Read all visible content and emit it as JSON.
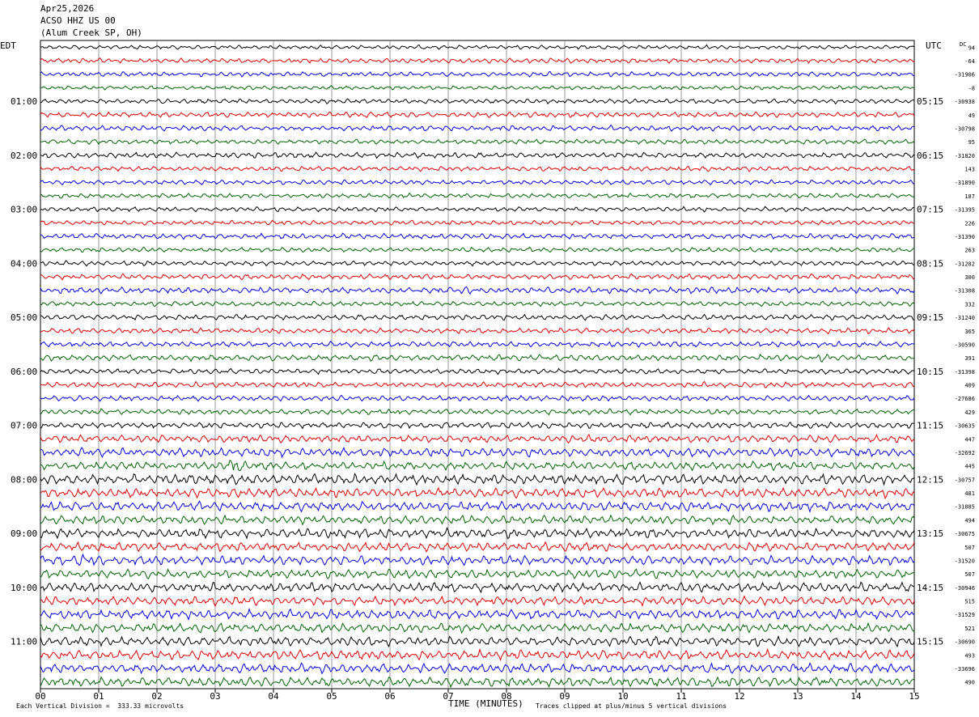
{
  "header": {
    "date": "Apr25,2026",
    "station": "ACSO HHZ US 00",
    "location": "(Alum Creek SP, OH)"
  },
  "labels": {
    "left_tz": "EDT",
    "right_tz": "UTC",
    "dc": "DC"
  },
  "footer": {
    "scale": "Each Vertical Division =  333.33 microvolts",
    "clip": "Traces clipped at plus/minus 5 vertical divisions"
  },
  "colors": {
    "trace": [
      "#000000",
      "#dd0000",
      "#0000dd",
      "#006400"
    ],
    "grid": "#808080",
    "frame": "#000000"
  },
  "chart_data": {
    "type": "line",
    "subtype": "helicorder",
    "title": "Apr25,2026 ACSO HHZ US 00 (Alum Creek SP, OH)",
    "xlabel": "TIME (MINUTES)",
    "xlim": [
      0,
      15
    ],
    "xticks": [
      "00",
      "01",
      "02",
      "03",
      "04",
      "05",
      "06",
      "07",
      "08",
      "09",
      "10",
      "11",
      "12",
      "13",
      "14",
      "15"
    ],
    "rows_count": 48,
    "row_minutes": 15,
    "left_hour_labels": [
      "01:00",
      "02:00",
      "03:00",
      "04:00",
      "05:00",
      "06:00",
      "07:00",
      "08:00",
      "09:00",
      "10:00",
      "11:00"
    ],
    "right_hour_labels": [
      "05:15",
      "06:15",
      "07:15",
      "08:15",
      "09:15",
      "10:15",
      "11:15",
      "12:15",
      "13:15",
      "14:15",
      "15:15"
    ],
    "dc_offsets": [
      "94",
      "-64",
      "-31906",
      "-8",
      "-30938",
      "49",
      "-30798",
      "95",
      "-31820",
      "143",
      "-31890",
      "187",
      "-31395",
      "226",
      "-31390",
      "263",
      "-31282",
      "300",
      "-31308",
      "332",
      "-31240",
      "365",
      "-30590",
      "391",
      "-31398",
      "409",
      "-27686",
      "429",
      "-30635",
      "447",
      "-32692",
      "445",
      "-30757",
      "481",
      "-31885",
      "494",
      "-30675",
      "507",
      "-31520",
      "507",
      "-30946",
      "515",
      "-31529",
      "521",
      "-30690",
      "493",
      "-33696",
      "490"
    ],
    "row_amplitude": [
      0.3,
      0.35,
      0.35,
      0.3,
      0.35,
      0.4,
      0.4,
      0.35,
      0.4,
      0.35,
      0.35,
      0.35,
      0.35,
      0.35,
      0.4,
      0.35,
      0.35,
      0.4,
      0.45,
      0.35,
      0.4,
      0.4,
      0.4,
      0.45,
      0.4,
      0.4,
      0.4,
      0.4,
      0.45,
      0.55,
      0.65,
      0.6,
      0.75,
      0.7,
      0.7,
      0.65,
      0.7,
      0.65,
      0.7,
      0.65,
      0.7,
      0.65,
      0.7,
      0.65,
      0.7,
      0.7,
      0.7,
      0.7
    ],
    "events": [
      {
        "row": 2,
        "minute": 5.4,
        "amplitude": 1.3
      },
      {
        "row": 7,
        "minute": 1.0,
        "amplitude": 1.3
      },
      {
        "row": 8,
        "minute": 4.6,
        "amplitude": 1.2
      },
      {
        "row": 18,
        "minute": 7.1,
        "amplitude": 2.2
      },
      {
        "row": 18,
        "minute": 11.4,
        "amplitude": 1.3
      },
      {
        "row": 23,
        "minute": 13.4,
        "amplitude": 1.5
      },
      {
        "row": 31,
        "minute": 3.3,
        "amplitude": 2.5
      },
      {
        "row": 38,
        "minute": 0.7,
        "amplitude": 1.4
      },
      {
        "row": 37,
        "minute": 8.4,
        "amplitude": 1.5
      }
    ]
  }
}
